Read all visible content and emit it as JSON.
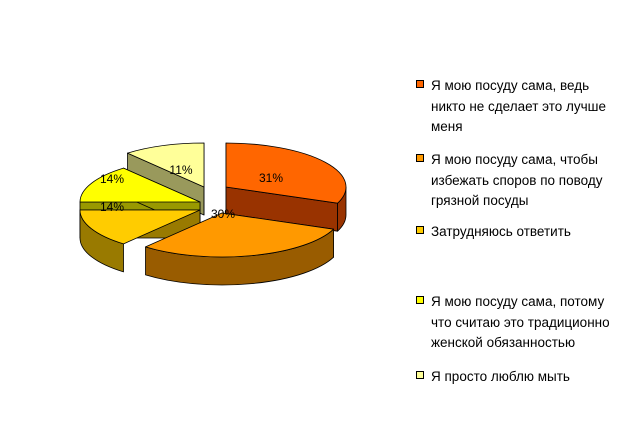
{
  "chart_data": {
    "type": "pie",
    "title": "",
    "style": "3d-exploded",
    "legend_position": "right",
    "slices": [
      {
        "label": "Я мою посуду сама, ведь никто не сделает это лучше меня",
        "value": 31,
        "value_label": "31%",
        "color": "#FF6600",
        "side_color": "#993300"
      },
      {
        "label": "Я мою посуду сама, чтобы избежать споров по поводу грязной посуды",
        "value": 30,
        "value_label": "30%",
        "color": "#FF9900",
        "side_color": "#995C00"
      },
      {
        "label": "Затрудняюсь ответить",
        "value": 14,
        "value_label": "14%",
        "color": "#FFCC00",
        "side_color": "#997A00"
      },
      {
        "label": "Я мою посуду сама, потому что считаю это традиционно женской обязанностью",
        "value": 14,
        "value_label": "14%",
        "color": "#FFFF00",
        "side_color": "#999900"
      },
      {
        "label": "Я просто люблю мыть",
        "value": 11,
        "value_label": "11%",
        "color": "#FFFF99",
        "side_color": "#99995C"
      }
    ]
  }
}
